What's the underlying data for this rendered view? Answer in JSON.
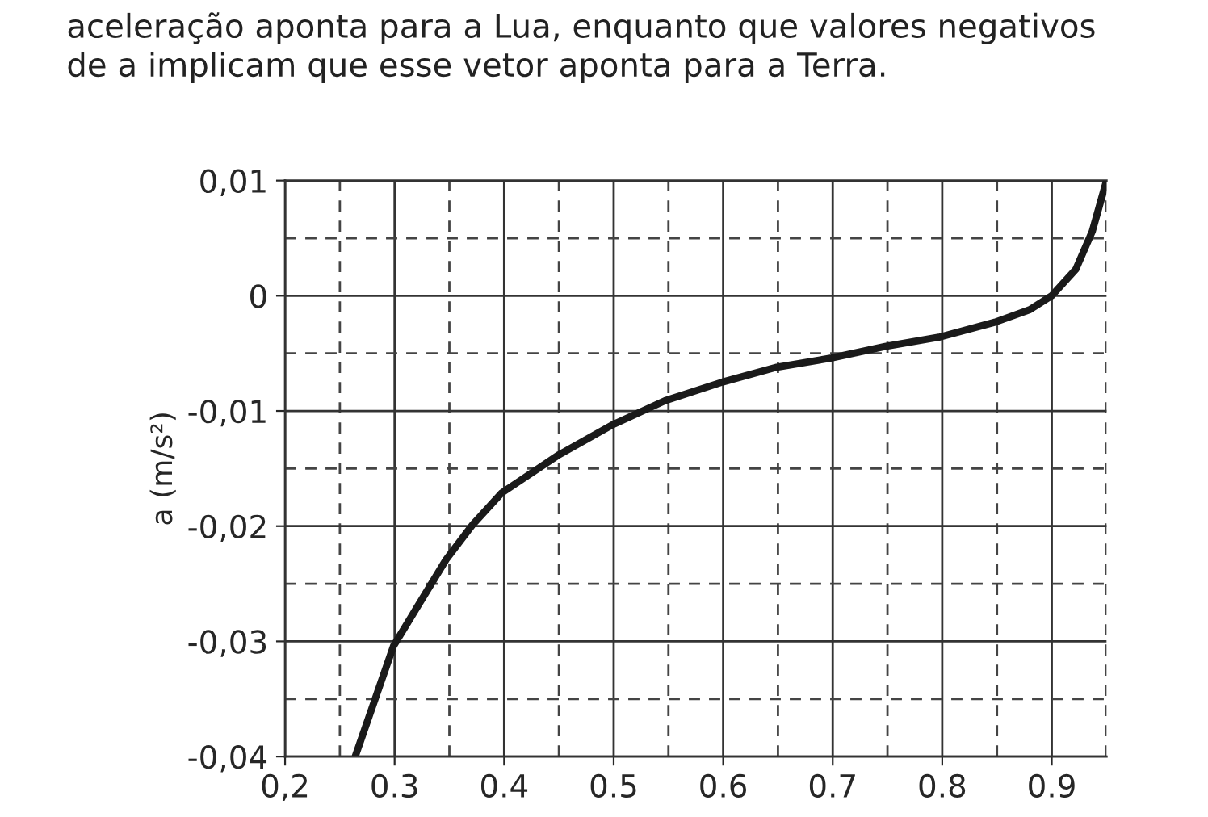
{
  "chart_data": {
    "type": "line",
    "ylabel": "a (m/s²)",
    "annotations": [
      "aceleração aponta para a Lua, enquanto que valores negativos\nde a implicam que esse vetor aponta para a Terra."
    ],
    "x": [
      0.264,
      0.299,
      0.347,
      0.371,
      0.398,
      0.45,
      0.499,
      0.547,
      0.599,
      0.649,
      0.699,
      0.748,
      0.797,
      0.848,
      0.88,
      0.9,
      0.922,
      0.937,
      0.95
    ],
    "series": [
      {
        "color": "#1a1a1a",
        "values": [
          -0.04,
          -0.0304,
          -0.0229,
          -0.0199,
          -0.0171,
          -0.0138,
          -0.0112,
          -0.0091,
          -0.0075,
          -0.0062,
          -0.0054,
          -0.0044,
          -0.0036,
          -0.0023,
          -0.0012,
          0.0,
          0.0023,
          0.0056,
          0.01
        ]
      }
    ],
    "xlim": [
      0.2,
      0.95
    ],
    "ylim": [
      -0.04,
      0.01
    ],
    "xticks": [
      {
        "value": 0.2,
        "label": "0,2"
      },
      0.3,
      0.4,
      0.5,
      0.6,
      0.7,
      0.8,
      0.9
    ],
    "yticks": [
      {
        "value": -0.04,
        "label": "-0,04"
      },
      {
        "value": -0.03,
        "label": "-0,03"
      },
      {
        "value": -0.02,
        "label": "-0,02"
      },
      {
        "value": -0.01,
        "label": "-0,01"
      },
      {
        "value": 0,
        "label": "0"
      },
      {
        "value": 0.01,
        "label": "0,01"
      }
    ],
    "grid": true,
    "legend": false,
    "marker": "none",
    "line_style": "solid"
  }
}
